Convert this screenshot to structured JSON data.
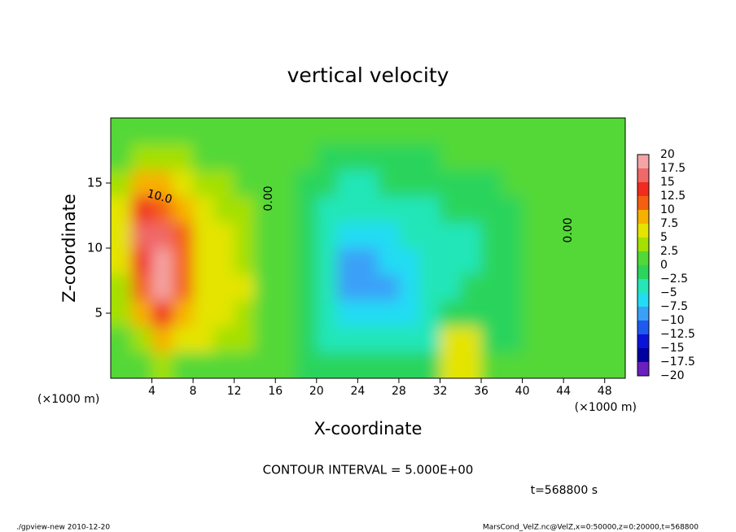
{
  "chart_data": {
    "type": "contour",
    "title": "vertical velocity",
    "x_label": "X-coordinate",
    "y_label": "Z-coordinate",
    "x_unit_label": "(×1000 m)",
    "y_unit_label": "(×1000 m)",
    "xlim": [
      0,
      50
    ],
    "ylim": [
      0,
      20
    ],
    "xticks": [
      4,
      8,
      12,
      16,
      20,
      24,
      28,
      32,
      36,
      40,
      44,
      48
    ],
    "yticks": [
      5,
      10,
      15
    ],
    "x": [
      1,
      3,
      5,
      7,
      9,
      11,
      13,
      15,
      17,
      19,
      21,
      23,
      25,
      27,
      29,
      31,
      33,
      35,
      37,
      39,
      41,
      43,
      45,
      47,
      49
    ],
    "z": [
      1,
      3,
      5,
      7,
      9,
      11,
      13,
      15,
      17,
      19
    ],
    "values": [
      [
        0,
        1,
        3,
        2,
        2,
        2,
        1.5,
        0.5,
        0,
        -0.5,
        -1,
        -2,
        -2,
        -2,
        -1.5,
        -1,
        5,
        5,
        0,
        0,
        0,
        0,
        0,
        0,
        0
      ],
      [
        1,
        4,
        8,
        5,
        5,
        4,
        3,
        1,
        0,
        -1.5,
        -3,
        -5,
        -5,
        -5,
        -4,
        -3,
        6,
        7,
        -0.5,
        -0.5,
        0,
        0,
        0.5,
        0,
        0
      ],
      [
        3,
        9,
        14,
        9,
        6,
        5,
        4,
        1.5,
        0,
        -2,
        -4,
        -6,
        -7,
        -7,
        -6,
        -4,
        -1,
        -1,
        -1,
        -0.5,
        0,
        0.5,
        0,
        0,
        0.5
      ],
      [
        4,
        12,
        19,
        11,
        7,
        6,
        5,
        2,
        0,
        -2.5,
        -5,
        -8,
        -9,
        -8,
        -7,
        -5,
        -3,
        -2.5,
        -2,
        -1,
        0,
        1,
        0.5,
        0,
        0.5
      ],
      [
        5,
        14,
        19,
        12,
        7,
        5,
        4,
        2,
        0,
        -2.5,
        -5,
        -8,
        -8,
        -7,
        -7,
        -5,
        -3,
        -3,
        -2,
        -1,
        0,
        0.5,
        0,
        0,
        0.5
      ],
      [
        6,
        15,
        15,
        11,
        7,
        5,
        3.5,
        2,
        0,
        -2,
        -4,
        -6,
        -6,
        -5.5,
        -5,
        -4,
        -3,
        -3,
        -2,
        -1,
        0,
        0,
        0,
        0,
        0.5
      ],
      [
        6,
        13,
        12,
        9,
        6,
        4,
        3,
        1.5,
        0,
        -2,
        -3.5,
        -4,
        -4.5,
        -4,
        -3.5,
        -3,
        -2,
        -2,
        -1,
        -0.5,
        0,
        0,
        0,
        0,
        0.5
      ],
      [
        4,
        8,
        8,
        6,
        4,
        3,
        2,
        1,
        0,
        -1,
        -2,
        -3,
        -3,
        -2.5,
        -2.5,
        -2,
        -1,
        -1,
        -0.5,
        0,
        0,
        0,
        0,
        0,
        0.5
      ],
      [
        2,
        3,
        3,
        2.5,
        2,
        1.5,
        1,
        0.5,
        0,
        0,
        -0.5,
        -0.5,
        -0.5,
        -0.5,
        -0.5,
        -0.5,
        0,
        0,
        0,
        0,
        0,
        0,
        0,
        0,
        0.5
      ],
      [
        1,
        1,
        1,
        1,
        1,
        1,
        1,
        1,
        0.5,
        0.5,
        0.5,
        0.5,
        0.5,
        0.5,
        0.5,
        0.5,
        0.5,
        0.5,
        0.5,
        0.5,
        0.5,
        0.5,
        0.5,
        0.5,
        0.5
      ]
    ],
    "levels": [
      {
        "value": -20,
        "label": "−20"
      },
      {
        "value": -17.5,
        "label": "−17.5"
      },
      {
        "value": -15,
        "label": "−15"
      },
      {
        "value": -12.5,
        "label": "−12.5"
      },
      {
        "value": -10,
        "label": "−10"
      },
      {
        "value": -7.5,
        "label": "−7.5"
      },
      {
        "value": -5,
        "label": "−5"
      },
      {
        "value": -2.5,
        "label": "−2.5"
      },
      0,
      2.5,
      5,
      7.5,
      10,
      12.5,
      15,
      17.5,
      20
    ],
    "colors": [
      "#6a1fc0",
      "#0000a0",
      "#0a14d8",
      "#1e5af0",
      "#3aa0f8",
      "#22dcf4",
      "#24e6b8",
      "#2cd45c",
      "#52d838",
      "#a4e000",
      "#e4e400",
      "#f8b000",
      "#f46010",
      "#f02c20",
      "#f06868",
      "#f4a4a4"
    ],
    "contour_labels": [
      "10.0",
      "0.00",
      "0.00"
    ],
    "annotation": "CONTOUR INTERVAL = 5.000E+00",
    "time_label": "t=568800 s",
    "footer_left": "./gpview-new  2010-12-20",
    "footer_right": "MarsCond_VelZ.nc@VelZ,x=0:50000,z=0:20000,t=568800"
  }
}
